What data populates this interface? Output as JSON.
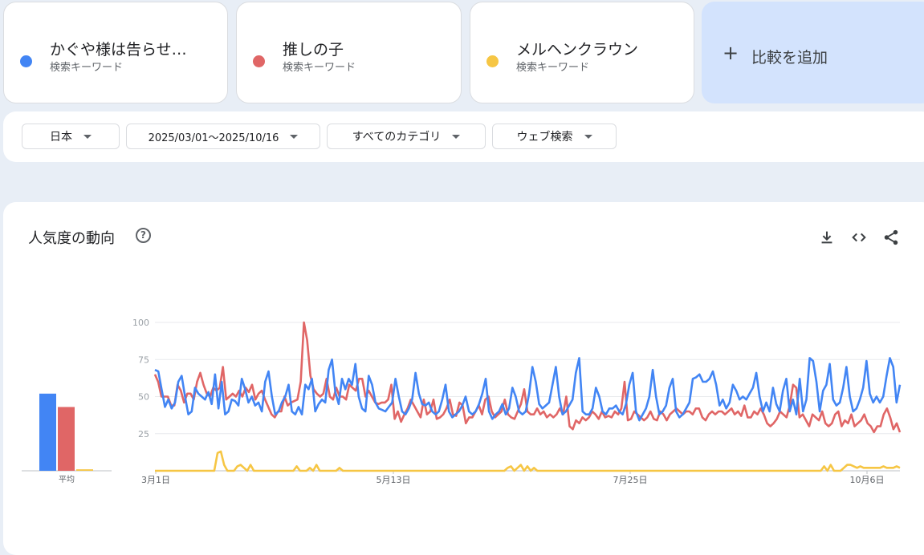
{
  "terms": [
    {
      "label": "かぐや様は告らせ…",
      "sub": "検索キーワード",
      "color": "#4285f4"
    },
    {
      "label": "推しの子",
      "sub": "検索キーワード",
      "color": "#e06666"
    },
    {
      "label": "メルヘンクラウン",
      "sub": "検索キーワード",
      "color": "#f6c644"
    }
  ],
  "compare": {
    "plus": "+",
    "label": "比較を追加"
  },
  "filters": {
    "region": "日本",
    "date_range": "2025/03/01～2025/10/16",
    "category": "すべてのカテゴリ",
    "search_type": "ウェブ検索"
  },
  "panel": {
    "title": "人気度の動向",
    "help_glyph": "?",
    "icons": [
      "download-icon",
      "embed-code-icon",
      "share-icon"
    ]
  },
  "chart_data": {
    "type": "line",
    "x_tick_labels": [
      "3月1日",
      "5月13日",
      "7月25日",
      "10月6日"
    ],
    "y_ticks": [
      25,
      50,
      75,
      100
    ],
    "ylim": [
      0,
      100
    ],
    "grid": true,
    "average_label": "平均",
    "averages": [
      52,
      43,
      1
    ],
    "series": [
      {
        "name": "かぐや様は告らせ…",
        "color": "#4285f4",
        "values": [
          68,
          67,
          55,
          43,
          48,
          42,
          46,
          60,
          64,
          50,
          38,
          40,
          56,
          52,
          50,
          48,
          53,
          45,
          65,
          42,
          60,
          38,
          40,
          48,
          47,
          44,
          62,
          55,
          46,
          50,
          44,
          46,
          40,
          60,
          67,
          50,
          38,
          40,
          46,
          50,
          58,
          40,
          38,
          43,
          38,
          58,
          55,
          62,
          40,
          45,
          48,
          46,
          68,
          75,
          53,
          45,
          62,
          55,
          62,
          58,
          72,
          50,
          42,
          40,
          64,
          58,
          46,
          42,
          41,
          40,
          43,
          46,
          62,
          50,
          40,
          38,
          42,
          48,
          66,
          52,
          45,
          44,
          46,
          40,
          38,
          40,
          48,
          58,
          40,
          36,
          38,
          40,
          44,
          50,
          40,
          38,
          40,
          45,
          52,
          62,
          40,
          35,
          38,
          40,
          45,
          38,
          42,
          56,
          50,
          40,
          38,
          40,
          52,
          70,
          60,
          45,
          42,
          44,
          46,
          58,
          70,
          50,
          38,
          40,
          44,
          48,
          66,
          76,
          40,
          38,
          38,
          42,
          56,
          50,
          40,
          38,
          42,
          42,
          44,
          40,
          38,
          45,
          58,
          66,
          40,
          34,
          38,
          42,
          50,
          68,
          50,
          38,
          40,
          44,
          56,
          62,
          40,
          36,
          38,
          42,
          46,
          62,
          63,
          65,
          60,
          60,
          62,
          67,
          58,
          44,
          48,
          42,
          46,
          58,
          54,
          48,
          50,
          48,
          52,
          56,
          66,
          50,
          40,
          46,
          40,
          56,
          45,
          40,
          54,
          62,
          40,
          48,
          38,
          62,
          40,
          48,
          76,
          74,
          60,
          40,
          54,
          58,
          72,
          48,
          44,
          46,
          56,
          70,
          50,
          40,
          42,
          48,
          56,
          74,
          52,
          46,
          50,
          46,
          50,
          64,
          76,
          70,
          46,
          58
        ]
      },
      {
        "name": "推しの子",
        "color": "#e06666",
        "values": [
          65,
          60,
          50,
          50,
          50,
          44,
          44,
          58,
          54,
          46,
          52,
          52,
          48,
          60,
          66,
          58,
          52,
          50,
          56,
          54,
          56,
          70,
          48,
          50,
          52,
          50,
          54,
          50,
          56,
          53,
          58,
          48,
          52,
          54,
          48,
          43,
          38,
          36,
          40,
          40,
          50,
          44,
          46,
          47,
          48,
          60,
          100,
          88,
          64,
          55,
          52,
          50,
          52,
          62,
          50,
          48,
          56,
          50,
          50,
          48,
          58,
          56,
          54,
          62,
          62,
          50,
          54,
          50,
          46,
          45,
          46,
          46,
          48,
          58,
          35,
          40,
          33,
          38,
          42,
          48,
          44,
          40,
          36,
          48,
          38,
          40,
          48,
          35,
          36,
          38,
          42,
          48,
          38,
          37,
          46,
          44,
          32,
          36,
          36,
          40,
          44,
          38,
          48,
          50,
          40,
          36,
          38,
          40,
          48,
          38,
          36,
          35,
          40,
          45,
          55,
          40,
          38,
          38,
          42,
          38,
          40,
          36,
          38,
          36,
          38,
          42,
          38,
          50,
          30,
          28,
          34,
          32,
          36,
          34,
          36,
          40,
          38,
          35,
          40,
          36,
          37,
          36,
          40,
          38,
          42,
          60,
          34,
          35,
          40,
          38,
          36,
          34,
          36,
          40,
          35,
          34,
          40,
          38,
          34,
          38,
          40,
          42,
          40,
          38,
          40,
          40,
          38,
          42,
          42,
          36,
          34,
          38,
          40,
          38,
          40,
          40,
          38,
          40,
          42,
          38,
          40,
          37,
          44,
          36,
          36,
          40,
          38,
          42,
          38,
          32,
          30,
          32,
          35,
          40,
          38,
          36,
          44,
          58,
          56,
          36,
          38,
          34,
          30,
          38,
          36,
          34,
          40,
          32,
          30,
          32,
          38,
          40,
          30,
          34,
          32,
          38,
          30,
          32,
          34,
          38,
          32,
          30,
          26,
          30,
          30,
          38,
          42,
          36,
          28,
          32,
          26
        ]
      },
      {
        "name": "メルヘンクラウン",
        "color": "#f6c644",
        "values": [
          0,
          0,
          0,
          0,
          0,
          0,
          0,
          0,
          0,
          0,
          0,
          0,
          0,
          0,
          0,
          0,
          0,
          0,
          0,
          12,
          13,
          4,
          0,
          0,
          0,
          3,
          4,
          2,
          0,
          4,
          0,
          0,
          0,
          0,
          0,
          0,
          0,
          0,
          0,
          0,
          0,
          0,
          0,
          3,
          0,
          0,
          0,
          2,
          0,
          4,
          0,
          0,
          0,
          0,
          0,
          0,
          2,
          0,
          0,
          0,
          0,
          0,
          0,
          0,
          0,
          0,
          0,
          0,
          0,
          0,
          0,
          0,
          0,
          0,
          0,
          0,
          0,
          0,
          0,
          0,
          0,
          0,
          0,
          0,
          0,
          0,
          0,
          0,
          0,
          0,
          0,
          0,
          0,
          0,
          0,
          0,
          0,
          0,
          0,
          0,
          0,
          0,
          0,
          0,
          0,
          0,
          0,
          2,
          3,
          0,
          2,
          4,
          0,
          3,
          0,
          2,
          0,
          0,
          0,
          0,
          0,
          0,
          0,
          0,
          0,
          0,
          0,
          0,
          0,
          0,
          0,
          0,
          0,
          0,
          0,
          0,
          0,
          0,
          0,
          0,
          0,
          0,
          0,
          0,
          0,
          0,
          0,
          0,
          0,
          0,
          0,
          0,
          0,
          0,
          0,
          0,
          0,
          0,
          0,
          0,
          0,
          0,
          0,
          0,
          0,
          0,
          0,
          0,
          0,
          0,
          0,
          0,
          0,
          0,
          0,
          0,
          0,
          0,
          0,
          0,
          0,
          0,
          0,
          0,
          0,
          0,
          0,
          0,
          0,
          0,
          0,
          0,
          0,
          0,
          0,
          0,
          0,
          0,
          0,
          0,
          0,
          0,
          0,
          3,
          0,
          4,
          0,
          0,
          0,
          2,
          4,
          4,
          3,
          2,
          3,
          2,
          2,
          2,
          2,
          2,
          2,
          3,
          2,
          2,
          2,
          3,
          2
        ]
      }
    ]
  }
}
